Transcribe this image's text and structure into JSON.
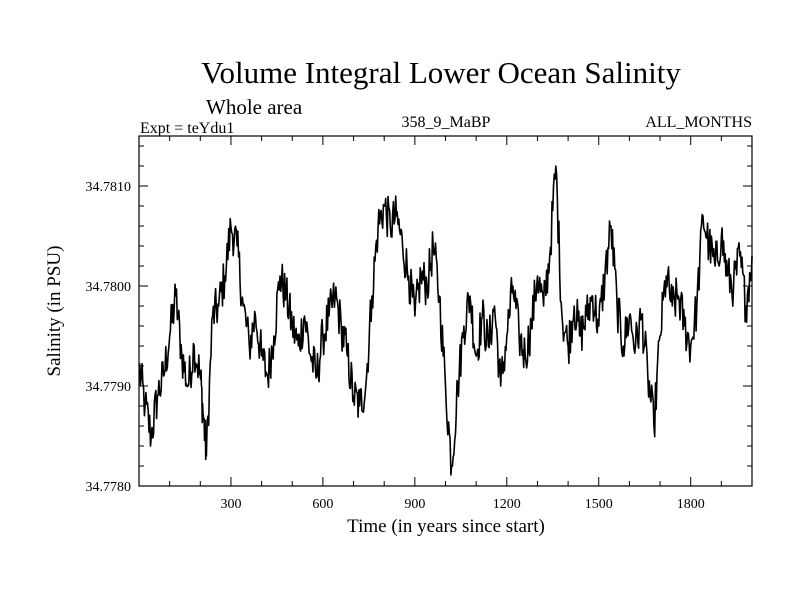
{
  "chart_data": {
    "type": "line",
    "title": "Volume Integral Lower Ocean Salinity",
    "subtitle": "Whole area",
    "label_left": "Expt = teYdu1",
    "label_center": "358_9_MaBP",
    "label_right": "ALL_MONTHS",
    "xlabel": "Time (in years since start)",
    "ylabel": "Salinity (in PSU)",
    "xlim": [
      0,
      2000
    ],
    "ylim": [
      34.778,
      34.7815
    ],
    "xticks": [
      300,
      600,
      900,
      1200,
      1500,
      1800
    ],
    "yticks": [
      34.778,
      34.779,
      34.78,
      34.781
    ],
    "ytick_labels": [
      "34.7780",
      "34.7790",
      "34.7800",
      "34.7810"
    ],
    "grid": false,
    "series": [
      {
        "name": "Salinity",
        "x": [
          0,
          20,
          40,
          60,
          80,
          100,
          120,
          140,
          160,
          180,
          200,
          210,
          220,
          240,
          260,
          280,
          300,
          320,
          340,
          360,
          380,
          400,
          420,
          440,
          460,
          480,
          500,
          520,
          540,
          560,
          580,
          600,
          620,
          640,
          660,
          680,
          700,
          720,
          740,
          760,
          780,
          800,
          820,
          840,
          860,
          880,
          900,
          920,
          940,
          960,
          980,
          1000,
          1020,
          1040,
          1060,
          1080,
          1100,
          1120,
          1140,
          1160,
          1180,
          1200,
          1220,
          1240,
          1260,
          1280,
          1300,
          1320,
          1340,
          1360,
          1380,
          1400,
          1420,
          1440,
          1460,
          1480,
          1500,
          1520,
          1540,
          1560,
          1580,
          1600,
          1620,
          1640,
          1660,
          1680,
          1700,
          1720,
          1740,
          1760,
          1780,
          1800,
          1820,
          1840,
          1860,
          1880,
          1900,
          1920,
          1940,
          1960,
          1980,
          2000
        ],
        "y": [
          34.7792,
          34.7788,
          34.7785,
          34.7789,
          34.7791,
          34.7795,
          34.7799,
          34.7793,
          34.779,
          34.7794,
          34.7791,
          34.7787,
          34.7783,
          34.7797,
          34.7798,
          34.7801,
          34.7806,
          34.7804,
          34.7798,
          34.7794,
          34.7797,
          34.7793,
          34.7791,
          34.7795,
          34.7801,
          34.7799,
          34.7796,
          34.7794,
          34.7797,
          34.7793,
          34.7791,
          34.7795,
          34.7797,
          34.7799,
          34.7796,
          34.7793,
          34.7789,
          34.7788,
          34.779,
          34.7799,
          34.7806,
          34.7808,
          34.7806,
          34.7807,
          34.7804,
          34.7801,
          34.7797,
          34.7801,
          34.78,
          34.7804,
          34.7799,
          34.779,
          34.7782,
          34.779,
          34.7796,
          34.7799,
          34.7793,
          34.7797,
          34.7794,
          34.7798,
          34.779,
          34.7795,
          34.78,
          34.7795,
          34.7793,
          34.7796,
          34.7801,
          34.7798,
          34.7803,
          34.7812,
          34.7797,
          34.7794,
          34.7798,
          34.7795,
          34.7797,
          34.7799,
          34.7796,
          34.7801,
          34.7806,
          34.7798,
          34.7794,
          34.7797,
          34.7794,
          34.7797,
          34.7791,
          34.7786,
          34.7795,
          34.7801,
          34.7798,
          34.7799,
          34.7796,
          34.7794,
          34.7798,
          34.7807,
          34.7804,
          34.7802,
          34.7805,
          34.7801,
          34.78,
          34.7803,
          34.7798,
          34.7803
        ]
      }
    ]
  }
}
